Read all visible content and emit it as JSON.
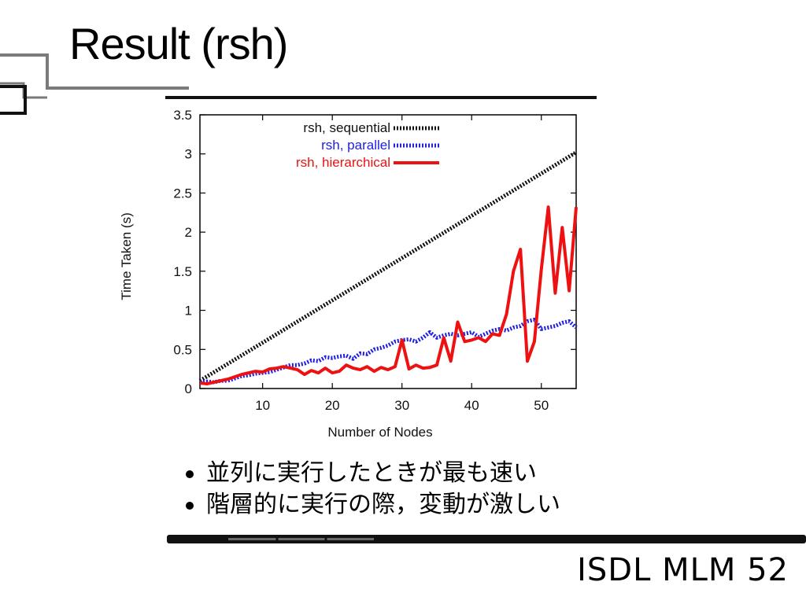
{
  "slide": {
    "title": "Result (rsh)",
    "bullets": [
      "並列に実行したときが最も速い",
      "階層的に実行の際，変動が激しい"
    ],
    "footer": "ISDL MLM 52"
  },
  "chart_data": {
    "type": "line",
    "title": "",
    "xlabel": "Number of Nodes",
    "ylabel": "Time Taken (s)",
    "xlim": [
      1,
      55
    ],
    "ylim": [
      0,
      3.5
    ],
    "xticks": [
      10,
      20,
      30,
      40,
      50
    ],
    "yticks": [
      0,
      0.5,
      1,
      1.5,
      2,
      2.5,
      3,
      3.5
    ],
    "grid": false,
    "legend_position": "top",
    "series": [
      {
        "name": "rsh, sequential",
        "color": "#111111",
        "style": "dotted",
        "points": [
          [
            1,
            0.1
          ],
          [
            55,
            3.02
          ]
        ]
      },
      {
        "name": "rsh, parallel",
        "color": "#1f1fe0",
        "style": "dotted",
        "points": [
          [
            1,
            0.08
          ],
          [
            2,
            0.09
          ],
          [
            3,
            0.08
          ],
          [
            4,
            0.1
          ],
          [
            5,
            0.1
          ],
          [
            6,
            0.13
          ],
          [
            7,
            0.16
          ],
          [
            8,
            0.17
          ],
          [
            9,
            0.19
          ],
          [
            10,
            0.2
          ],
          [
            11,
            0.21
          ],
          [
            12,
            0.24
          ],
          [
            13,
            0.27
          ],
          [
            14,
            0.3
          ],
          [
            15,
            0.3
          ],
          [
            16,
            0.32
          ],
          [
            17,
            0.36
          ],
          [
            18,
            0.35
          ],
          [
            19,
            0.4
          ],
          [
            20,
            0.39
          ],
          [
            21,
            0.41
          ],
          [
            22,
            0.42
          ],
          [
            23,
            0.38
          ],
          [
            24,
            0.45
          ],
          [
            25,
            0.44
          ],
          [
            26,
            0.5
          ],
          [
            27,
            0.52
          ],
          [
            28,
            0.55
          ],
          [
            29,
            0.6
          ],
          [
            30,
            0.62
          ],
          [
            31,
            0.63
          ],
          [
            32,
            0.6
          ],
          [
            33,
            0.65
          ],
          [
            34,
            0.72
          ],
          [
            35,
            0.65
          ],
          [
            36,
            0.68
          ],
          [
            37,
            0.7
          ],
          [
            38,
            0.68
          ],
          [
            39,
            0.7
          ],
          [
            40,
            0.72
          ],
          [
            41,
            0.66
          ],
          [
            42,
            0.7
          ],
          [
            43,
            0.74
          ],
          [
            44,
            0.76
          ],
          [
            45,
            0.74
          ],
          [
            46,
            0.78
          ],
          [
            47,
            0.8
          ],
          [
            48,
            0.86
          ],
          [
            49,
            0.88
          ],
          [
            50,
            0.76
          ],
          [
            51,
            0.78
          ],
          [
            52,
            0.8
          ],
          [
            53,
            0.84
          ],
          [
            54,
            0.86
          ],
          [
            55,
            0.78
          ]
        ]
      },
      {
        "name": "rsh, hierarchical",
        "color": "#ee1111",
        "style": "solid",
        "points": [
          [
            1,
            0.07
          ],
          [
            2,
            0.06
          ],
          [
            3,
            0.08
          ],
          [
            4,
            0.1
          ],
          [
            5,
            0.12
          ],
          [
            6,
            0.15
          ],
          [
            7,
            0.18
          ],
          [
            8,
            0.2
          ],
          [
            9,
            0.22
          ],
          [
            10,
            0.21
          ],
          [
            11,
            0.25
          ],
          [
            12,
            0.26
          ],
          [
            13,
            0.28
          ],
          [
            14,
            0.26
          ],
          [
            15,
            0.24
          ],
          [
            16,
            0.18
          ],
          [
            17,
            0.23
          ],
          [
            18,
            0.2
          ],
          [
            19,
            0.26
          ],
          [
            20,
            0.2
          ],
          [
            21,
            0.22
          ],
          [
            22,
            0.3
          ],
          [
            23,
            0.26
          ],
          [
            24,
            0.24
          ],
          [
            25,
            0.28
          ],
          [
            26,
            0.22
          ],
          [
            27,
            0.27
          ],
          [
            28,
            0.24
          ],
          [
            29,
            0.28
          ],
          [
            30,
            0.62
          ],
          [
            31,
            0.25
          ],
          [
            32,
            0.3
          ],
          [
            33,
            0.26
          ],
          [
            34,
            0.27
          ],
          [
            35,
            0.3
          ],
          [
            36,
            0.65
          ],
          [
            37,
            0.35
          ],
          [
            38,
            0.85
          ],
          [
            39,
            0.6
          ],
          [
            40,
            0.62
          ],
          [
            41,
            0.65
          ],
          [
            42,
            0.6
          ],
          [
            43,
            0.7
          ],
          [
            44,
            0.68
          ],
          [
            45,
            0.95
          ],
          [
            46,
            1.5
          ],
          [
            47,
            1.78
          ],
          [
            48,
            0.35
          ],
          [
            49,
            0.6
          ],
          [
            50,
            1.52
          ],
          [
            51,
            2.32
          ],
          [
            52,
            1.22
          ],
          [
            53,
            2.06
          ],
          [
            54,
            1.25
          ],
          [
            55,
            2.32
          ]
        ]
      }
    ]
  }
}
